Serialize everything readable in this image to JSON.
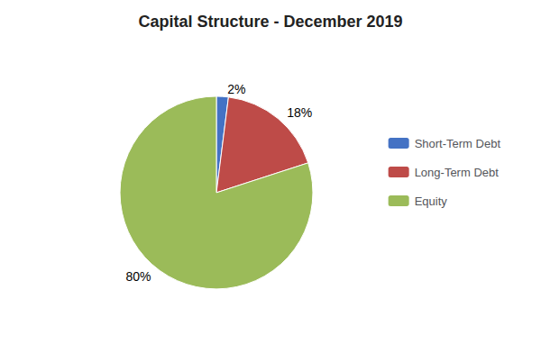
{
  "chart_data": {
    "type": "pie",
    "title": "Capital Structure - December 2019",
    "categories": [
      "Short-Term Debt",
      "Long-Term Debt",
      "Equity"
    ],
    "values": [
      2,
      18,
      80
    ],
    "value_labels": [
      "2%",
      "18%",
      "80%"
    ],
    "colors": [
      "#4472C4",
      "#BE4B48",
      "#9BBB59"
    ],
    "data_labels": true,
    "legend": "right"
  }
}
